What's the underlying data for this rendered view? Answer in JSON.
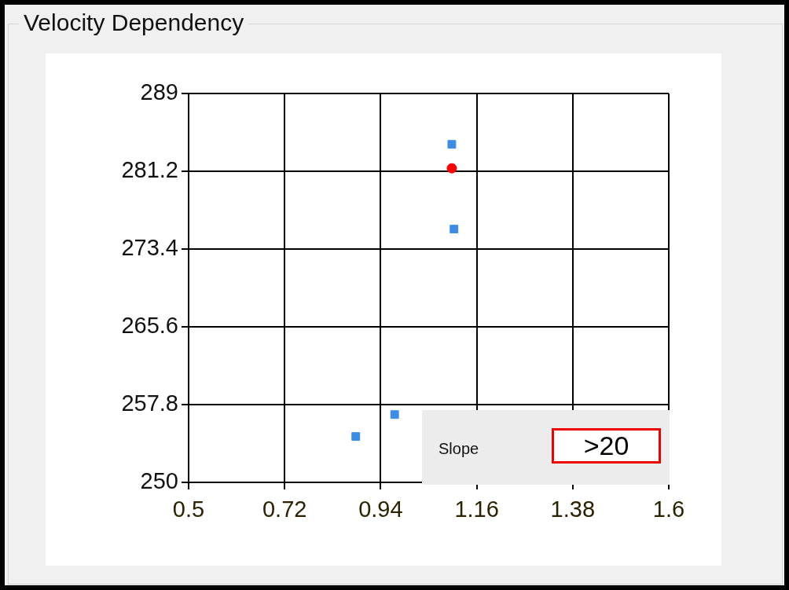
{
  "chart_data": {
    "type": "scatter",
    "title": "Velocity Dependency",
    "series": [
      {
        "color": "#3c8ce6",
        "marker": "square",
        "x": [
          1.103,
          1.108,
          0.972,
          0.883
        ],
        "values": [
          283.9,
          275.4,
          256.8,
          254.6
        ]
      },
      {
        "color": "#ff0000",
        "marker": "circle",
        "x": [
          1.103
        ],
        "values": [
          281.5
        ]
      }
    ],
    "xlim": [
      0.5,
      1.6
    ],
    "xticks": [
      0.5,
      0.72,
      0.94,
      1.16,
      1.38,
      1.6
    ],
    "ylim": [
      250,
      289
    ],
    "yticks": [
      250,
      257.8,
      265.6,
      273.4,
      281.2,
      289
    ],
    "grid": true,
    "legend": false,
    "annotations": [
      "Slope",
      ">20"
    ]
  }
}
